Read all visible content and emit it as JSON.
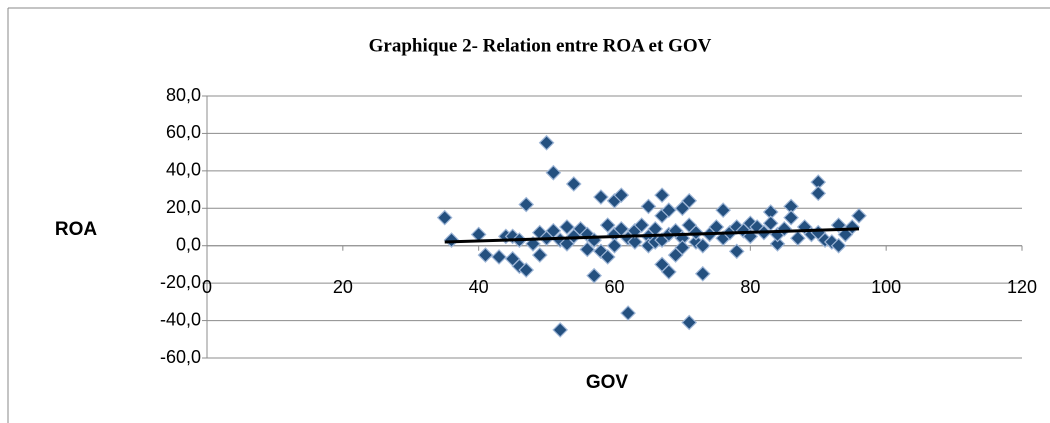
{
  "chart_data": {
    "type": "scatter",
    "title": "Graphique 2- Relation entre ROA et GOV",
    "x_label": "GOV",
    "y_label": "ROA",
    "color": "#24507f",
    "grid": true,
    "xlim": [
      0,
      120
    ],
    "xticks": [
      0,
      20,
      40,
      60,
      80,
      100,
      120
    ],
    "ylim": [
      -60,
      80
    ],
    "yticks": [
      {
        "value": -60,
        "label": "-60,0"
      },
      {
        "value": -40,
        "label": "-40,0"
      },
      {
        "value": -20,
        "label": "-20,0"
      },
      {
        "value": 0,
        "label": "0,0"
      },
      {
        "value": 20,
        "label": "20,0"
      },
      {
        "value": 40,
        "label": "40,0"
      },
      {
        "value": 60,
        "label": "60,0"
      },
      {
        "value": 80,
        "label": "80,0"
      }
    ],
    "x": [
      35,
      36,
      40,
      41,
      43,
      44,
      45,
      45,
      46,
      46,
      47,
      47,
      48,
      49,
      49,
      50,
      50,
      51,
      51,
      52,
      52,
      53,
      53,
      54,
      54,
      55,
      56,
      56,
      57,
      57,
      58,
      58,
      59,
      59,
      60,
      60,
      60,
      61,
      61,
      62,
      62,
      63,
      63,
      64,
      65,
      65,
      65,
      66,
      66,
      67,
      67,
      67,
      67,
      68,
      68,
      68,
      69,
      69,
      70,
      70,
      70,
      71,
      71,
      71,
      72,
      72,
      73,
      73,
      74,
      75,
      76,
      76,
      77,
      78,
      78,
      79,
      80,
      80,
      81,
      82,
      83,
      83,
      84,
      84,
      85,
      86,
      86,
      87,
      88,
      89,
      90,
      90,
      90,
      91,
      92,
      93,
      93,
      94,
      95,
      96
    ],
    "y": [
      15,
      3,
      6,
      -5,
      -6,
      5,
      -7,
      5,
      -11,
      3,
      22,
      -13,
      1,
      -5,
      7,
      55,
      4,
      39,
      8,
      -45,
      3,
      10,
      1,
      33,
      5,
      9,
      -2,
      6,
      -16,
      3,
      26,
      -3,
      11,
      -6,
      24,
      6,
      0,
      27,
      9,
      -36,
      4,
      2,
      8,
      11,
      21,
      5,
      0,
      9,
      2,
      27,
      -10,
      16,
      3,
      -14,
      19,
      6,
      -5,
      8,
      20,
      4,
      -1,
      24,
      -41,
      11,
      2,
      7,
      -15,
      0,
      6,
      10,
      19,
      4,
      7,
      -3,
      10,
      8,
      12,
      5,
      10,
      7,
      18,
      12,
      1,
      6,
      9,
      21,
      15,
      4,
      10,
      6,
      34,
      28,
      7,
      3,
      2,
      11,
      0,
      6,
      10,
      16
    ],
    "trend": {
      "x": [
        35,
        96
      ],
      "y": [
        2,
        9
      ]
    }
  }
}
